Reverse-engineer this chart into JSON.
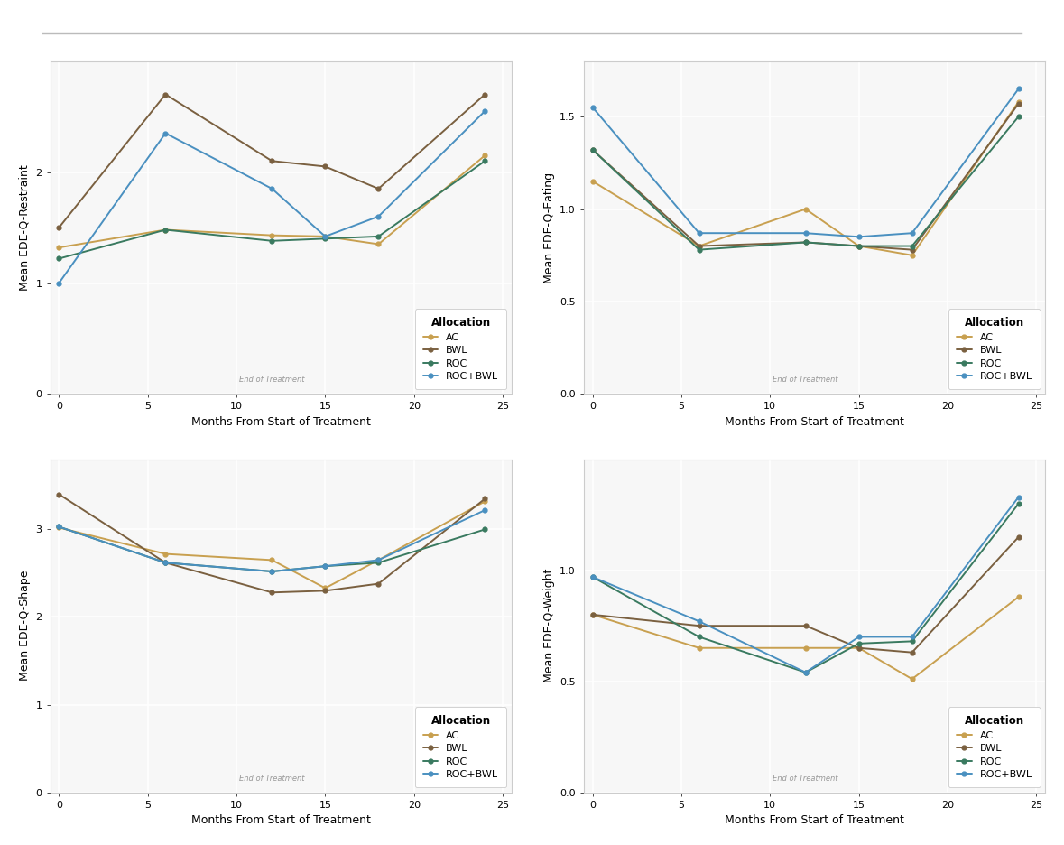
{
  "x": [
    0,
    6,
    12,
    15,
    18,
    24
  ],
  "restraint": {
    "AC": [
      1.32,
      1.48,
      1.43,
      1.42,
      1.35,
      2.15
    ],
    "BWL": [
      1.5,
      2.7,
      2.1,
      2.05,
      1.85,
      2.7
    ],
    "ROC": [
      1.22,
      1.48,
      1.38,
      1.4,
      1.42,
      2.1
    ],
    "ROC+BWL": [
      1.0,
      2.35,
      1.85,
      1.42,
      1.6,
      2.55
    ]
  },
  "eating": {
    "AC": [
      1.15,
      0.8,
      1.0,
      0.8,
      0.75,
      1.58
    ],
    "BWL": [
      1.32,
      0.8,
      0.82,
      0.8,
      0.78,
      1.57
    ],
    "ROC": [
      1.32,
      0.78,
      0.82,
      0.8,
      0.8,
      1.5
    ],
    "ROC+BWL": [
      1.55,
      0.87,
      0.87,
      0.85,
      0.87,
      1.65
    ]
  },
  "shape": {
    "AC": [
      3.02,
      2.72,
      2.65,
      2.33,
      2.65,
      3.32
    ],
    "BWL": [
      3.4,
      2.62,
      2.28,
      2.3,
      2.38,
      3.35
    ],
    "ROC": [
      3.03,
      2.62,
      2.52,
      2.58,
      2.62,
      3.0
    ],
    "ROC+BWL": [
      3.03,
      2.62,
      2.52,
      2.58,
      2.65,
      3.22
    ]
  },
  "weight": {
    "AC": [
      0.8,
      0.65,
      0.65,
      0.65,
      0.51,
      0.88
    ],
    "BWL": [
      0.8,
      0.75,
      0.75,
      0.65,
      0.63,
      1.15
    ],
    "ROC": [
      0.97,
      0.7,
      0.54,
      0.67,
      0.68,
      1.3
    ],
    "ROC+BWL": [
      0.97,
      0.77,
      0.54,
      0.7,
      0.7,
      1.33
    ]
  },
  "colors": {
    "AC": "#C8A050",
    "BWL": "#7A6040",
    "ROC": "#3A7A60",
    "ROC+BWL": "#4A90C0"
  },
  "ylims": {
    "restraint": [
      0,
      3.0
    ],
    "eating": [
      0.0,
      1.8
    ],
    "shape": [
      0,
      3.8
    ],
    "weight": [
      0.0,
      1.5
    ]
  },
  "yticks": {
    "restraint": [
      0,
      1,
      2
    ],
    "eating": [
      0.0,
      0.5,
      1.0,
      1.5
    ],
    "shape": [
      0,
      1,
      2,
      3
    ],
    "weight": [
      0.0,
      0.5,
      1.0
    ]
  },
  "xlim": [
    -0.5,
    25.5
  ],
  "xticks": [
    0,
    5,
    10,
    15,
    20,
    25
  ],
  "xlabel": "Months From Start of Treatment",
  "ylabels": {
    "restraint": "Mean EDE-Q-Restraint",
    "eating": "Mean EDE-Q-Eating",
    "shape": "Mean EDE-Q-Shape",
    "weight": "Mean EDE-Q-Weight"
  },
  "end_treatment_x": 12,
  "plot_bg": "#f7f7f7",
  "fig_bg": "#ffffff",
  "grid_color": "#ffffff",
  "legend_title": "Allocation",
  "separator_y": 0.96,
  "separator_color": "#bbbbbb"
}
